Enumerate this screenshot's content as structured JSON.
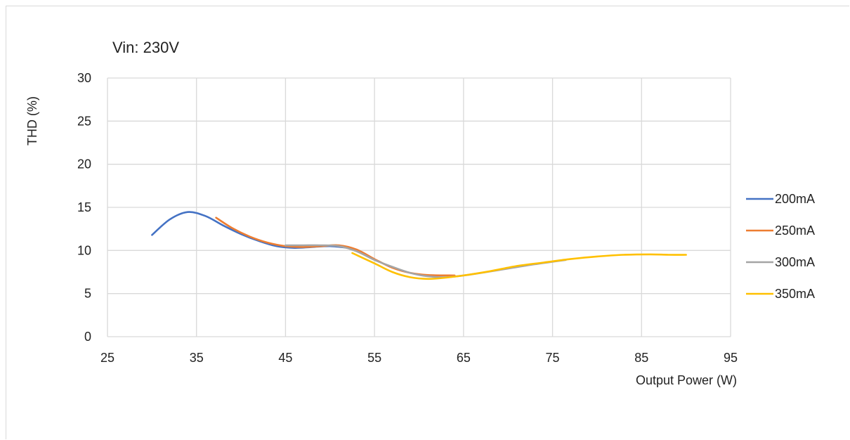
{
  "chart_data": {
    "type": "line",
    "title": "Vin: 230V",
    "xlabel": "Output Power (W)",
    "ylabel": "THD (%)",
    "xlim": [
      25,
      95
    ],
    "ylim": [
      0,
      30
    ],
    "xticks": [
      25,
      35,
      45,
      55,
      65,
      75,
      85,
      95
    ],
    "yticks": [
      0,
      5,
      10,
      15,
      20,
      25,
      30
    ],
    "grid": true,
    "legend_position": "right",
    "series": [
      {
        "name": "200mA",
        "color": "#4472C4",
        "points": [
          [
            30,
            11.8
          ],
          [
            32,
            13.6
          ],
          [
            34,
            14.45
          ],
          [
            36,
            14.0
          ],
          [
            38,
            12.9
          ],
          [
            40,
            11.9
          ],
          [
            42,
            11.1
          ],
          [
            44,
            10.5
          ],
          [
            46,
            10.3
          ],
          [
            48,
            10.4
          ],
          [
            50,
            10.5
          ],
          [
            52,
            10.3
          ]
        ]
      },
      {
        "name": "250mA",
        "color": "#ED7D31",
        "points": [
          [
            37.2,
            13.8
          ],
          [
            39,
            12.6
          ],
          [
            41,
            11.6
          ],
          [
            43,
            10.9
          ],
          [
            45,
            10.5
          ],
          [
            47,
            10.4
          ],
          [
            49,
            10.5
          ],
          [
            51,
            10.6
          ],
          [
            53,
            10.1
          ],
          [
            55,
            9.0
          ],
          [
            57,
            8.0
          ],
          [
            59,
            7.4
          ],
          [
            61,
            7.15
          ],
          [
            64,
            7.1
          ]
        ]
      },
      {
        "name": "300mA",
        "color": "#A5A5A5",
        "points": [
          [
            45,
            10.6
          ],
          [
            47,
            10.6
          ],
          [
            49,
            10.6
          ],
          [
            51,
            10.5
          ],
          [
            53,
            9.9
          ],
          [
            55,
            8.9
          ],
          [
            57,
            8.1
          ],
          [
            59,
            7.4
          ],
          [
            61,
            7.0
          ],
          [
            63,
            6.9
          ],
          [
            65,
            7.1
          ],
          [
            67,
            7.4
          ],
          [
            70,
            7.9
          ],
          [
            73,
            8.4
          ],
          [
            76.5,
            8.9
          ]
        ]
      },
      {
        "name": "350mA",
        "color": "#FFC000",
        "points": [
          [
            52.5,
            9.7
          ],
          [
            55,
            8.5
          ],
          [
            57,
            7.5
          ],
          [
            59,
            6.9
          ],
          [
            61,
            6.7
          ],
          [
            63,
            6.85
          ],
          [
            65,
            7.1
          ],
          [
            68,
            7.6
          ],
          [
            71,
            8.2
          ],
          [
            74,
            8.6
          ],
          [
            77,
            9.0
          ],
          [
            80,
            9.3
          ],
          [
            83,
            9.5
          ],
          [
            86,
            9.55
          ],
          [
            88,
            9.5
          ],
          [
            90,
            9.5
          ]
        ]
      }
    ]
  }
}
